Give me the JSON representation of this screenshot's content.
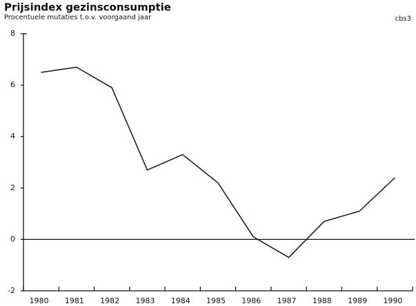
{
  "chart_data": {
    "type": "line",
    "title": "Prijsindex gezinsconsumptie",
    "subtitle": "Procentuele mutaties t.o.v. voorgaand jaar",
    "annotation": "cbs3",
    "categories": [
      "1980",
      "1981",
      "1982",
      "1983",
      "1984",
      "1985",
      "1986",
      "1987",
      "1988",
      "1989",
      "1990"
    ],
    "values": [
      6.5,
      6.7,
      5.9,
      2.7,
      3.3,
      2.2,
      0.1,
      -0.7,
      0.7,
      1.1,
      2.4
    ],
    "color": "#111111",
    "ylim": [
      -2,
      8
    ],
    "yticks": [
      -2,
      0,
      2,
      4,
      6,
      8
    ],
    "grid": false
  }
}
